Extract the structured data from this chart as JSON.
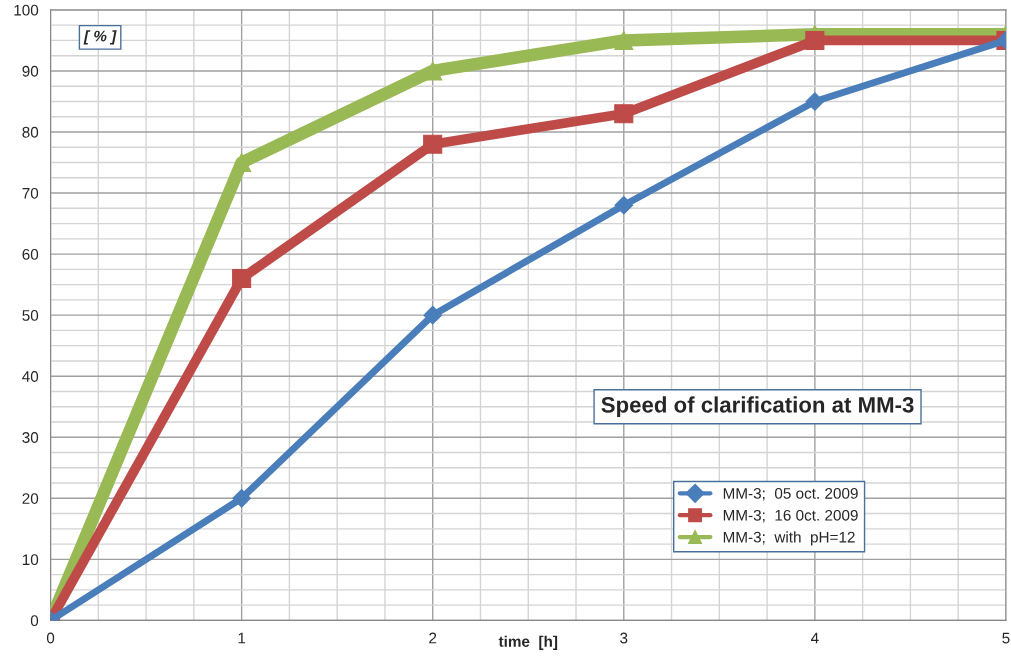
{
  "chart_data": {
    "type": "line",
    "title": "Speed of clarification at MM-3",
    "xlabel": "time  [h]",
    "ylabel": "[ % ]",
    "x": [
      0,
      1,
      2,
      3,
      4,
      5
    ],
    "series": [
      {
        "name": "MM-3;  05 oct. 2009",
        "color": "#4a7ebb",
        "values": [
          0,
          20,
          50,
          68,
          85,
          95
        ],
        "marker": "diamond"
      },
      {
        "name": "MM-3;  16 0ct. 2009",
        "color": "#be4b48",
        "values": [
          0,
          56,
          78,
          83,
          95,
          95
        ],
        "marker": "square"
      },
      {
        "name": "MM-3;  with  pH=12",
        "color": "#98b954",
        "values": [
          0,
          75,
          90,
          95,
          96,
          96
        ],
        "marker": "triangle"
      }
    ],
    "xlim": [
      0,
      5
    ],
    "ylim": [
      0,
      100
    ],
    "xticks": [
      0,
      1,
      2,
      3,
      4,
      5
    ],
    "yticks": [
      0,
      10,
      20,
      30,
      40,
      50,
      60,
      70,
      80,
      90,
      100
    ],
    "grid": true,
    "legend": "lower right",
    "line_style": "solid"
  }
}
